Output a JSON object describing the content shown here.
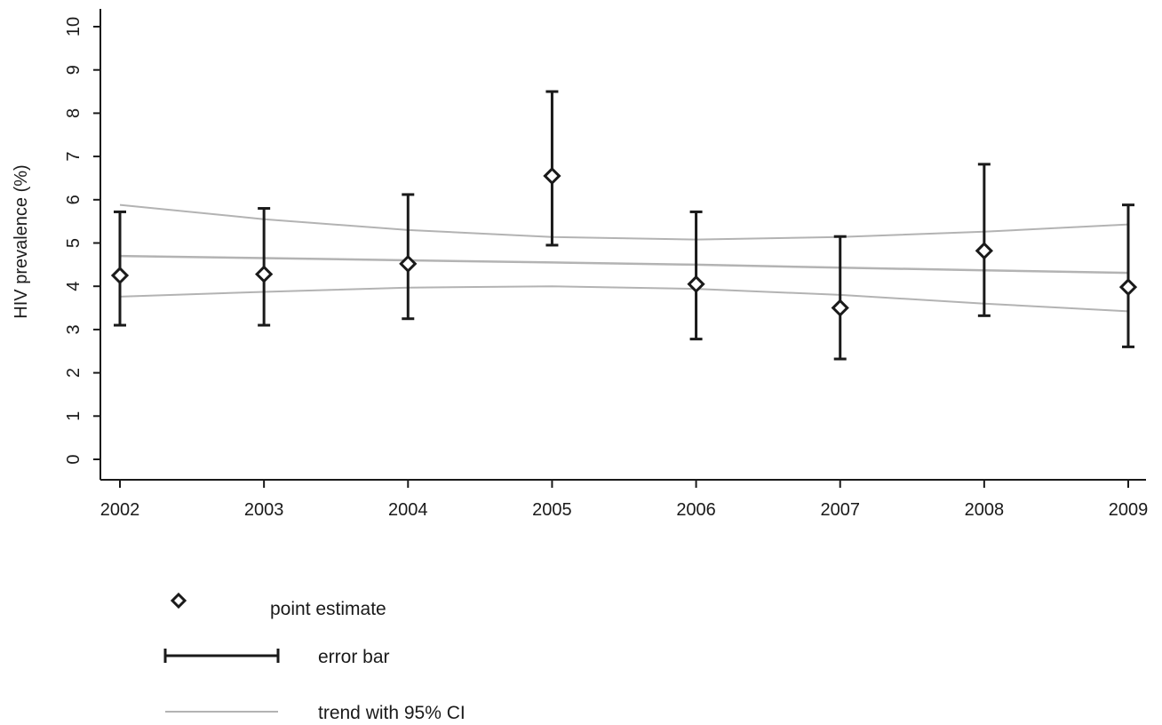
{
  "chart_data": {
    "type": "scatter",
    "title": "",
    "xlabel": "",
    "ylabel": "HIV prevalence (%)",
    "categories": [
      "2002",
      "2003",
      "2004",
      "2005",
      "2006",
      "2007",
      "2008",
      "2009"
    ],
    "ylim": [
      0,
      10
    ],
    "yticks": [
      "0",
      "1",
      "2",
      "3",
      "4",
      "5",
      "6",
      "7",
      "8",
      "9",
      "10"
    ],
    "grid": false,
    "legend_position": "bottom-left",
    "colors": {
      "points": "#1a1a1a",
      "error_bars": "#1a1a1a",
      "trend": "#b3b3b3",
      "axis": "#1a1a1a"
    },
    "series": [
      {
        "name": "point estimate",
        "values": [
          4.25,
          4.28,
          4.52,
          6.55,
          4.05,
          3.5,
          4.82,
          3.98
        ]
      },
      {
        "name": "error bar",
        "lower": [
          3.1,
          3.1,
          3.25,
          4.95,
          2.78,
          2.32,
          3.32,
          2.6
        ],
        "upper": [
          5.72,
          5.8,
          6.12,
          8.5,
          5.72,
          5.15,
          6.82,
          5.88
        ]
      },
      {
        "name": "trend with 95% CI",
        "values": [
          4.7,
          4.65,
          4.6,
          4.55,
          4.5,
          4.43,
          4.37,
          4.31
        ],
        "ci_upper": [
          5.88,
          5.55,
          5.3,
          5.14,
          5.08,
          5.14,
          5.26,
          5.43
        ],
        "ci_lower": [
          3.76,
          3.87,
          3.97,
          4.0,
          3.94,
          3.8,
          3.6,
          3.42
        ]
      }
    ]
  },
  "legend": {
    "items": [
      {
        "key": "point",
        "label": "point estimate"
      },
      {
        "key": "errorbar",
        "label": "error bar"
      },
      {
        "key": "trend",
        "label": "trend with 95% CI"
      }
    ]
  }
}
